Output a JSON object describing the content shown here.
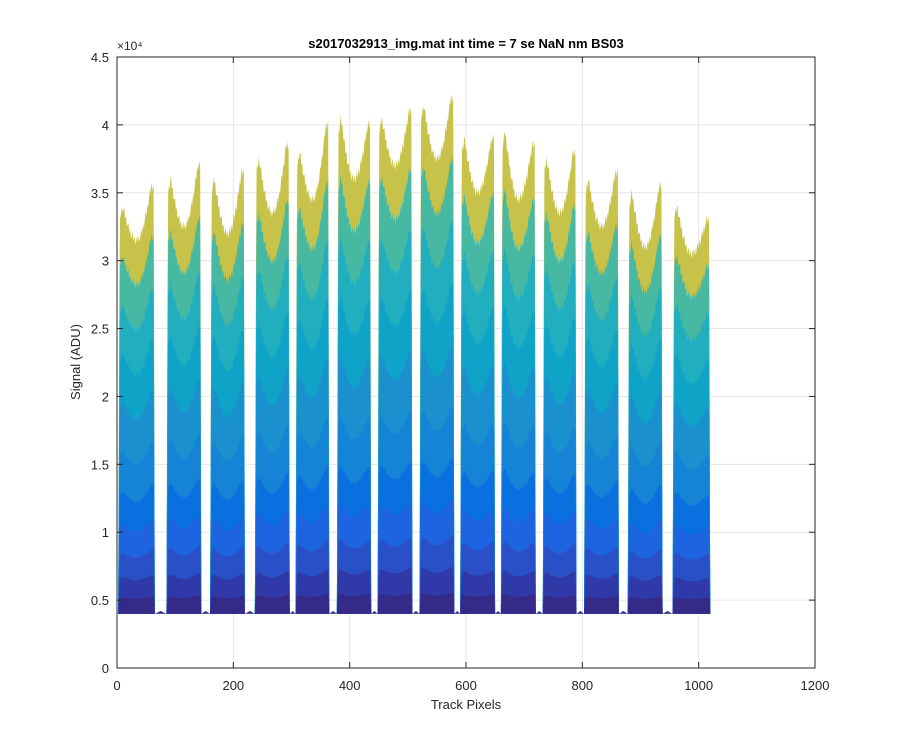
{
  "chart_data": {
    "type": "area",
    "title": "s2017032913_img.mat int time = 7 se  NaN nm BS03",
    "xlabel": "Track Pixels",
    "ylabel": "Signal (ADU)",
    "xlim": [
      0,
      1200
    ],
    "ylim": [
      0,
      45000
    ],
    "x_ticks": [
      0,
      200,
      400,
      600,
      800,
      1000,
      1200
    ],
    "x_tick_labels": [
      "0",
      "200",
      "400",
      "600",
      "800",
      "1000",
      "1200"
    ],
    "y_ticks": [
      0,
      5000,
      10000,
      15000,
      20000,
      25000,
      30000,
      35000,
      40000,
      45000
    ],
    "y_tick_labels": [
      "0",
      "0.5",
      "1",
      "1.5",
      "2",
      "2.5",
      "3",
      "3.5",
      "4",
      "4.5"
    ],
    "y_exponent_label": "×10⁴",
    "grid": true,
    "baseline": 4000,
    "gap_minima": 4200,
    "channels": [
      {
        "x_start": 2,
        "x_end": 65,
        "left_peak": 34000,
        "mid_value": 31500,
        "right_peak": 35500
      },
      {
        "x_start": 85,
        "x_end": 145,
        "left_peak": 36000,
        "mid_value": 32500,
        "right_peak": 37000
      },
      {
        "x_start": 160,
        "x_end": 220,
        "left_peak": 36000,
        "mid_value": 32000,
        "right_peak": 36500
      },
      {
        "x_start": 237,
        "x_end": 297,
        "left_peak": 37500,
        "mid_value": 33500,
        "right_peak": 38500
      },
      {
        "x_start": 307,
        "x_end": 365,
        "left_peak": 38000,
        "mid_value": 34500,
        "right_peak": 40000
      },
      {
        "x_start": 378,
        "x_end": 437,
        "left_peak": 40500,
        "mid_value": 36000,
        "right_peak": 40000
      },
      {
        "x_start": 448,
        "x_end": 508,
        "left_peak": 40500,
        "mid_value": 37000,
        "right_peak": 41000
      },
      {
        "x_start": 520,
        "x_end": 580,
        "left_peak": 41500,
        "mid_value": 37500,
        "right_peak": 42000
      },
      {
        "x_start": 590,
        "x_end": 650,
        "left_peak": 39000,
        "mid_value": 35000,
        "right_peak": 39000
      },
      {
        "x_start": 660,
        "x_end": 720,
        "left_peak": 39500,
        "mid_value": 34500,
        "right_peak": 38500
      },
      {
        "x_start": 732,
        "x_end": 790,
        "left_peak": 37500,
        "mid_value": 33500,
        "right_peak": 38000
      },
      {
        "x_start": 803,
        "x_end": 863,
        "left_peak": 36000,
        "mid_value": 32500,
        "right_peak": 36500
      },
      {
        "x_start": 878,
        "x_end": 938,
        "left_peak": 35000,
        "mid_value": 31000,
        "right_peak": 35500
      },
      {
        "x_start": 955,
        "x_end": 1020,
        "left_peak": 34000,
        "mid_value": 30500,
        "right_peak": 33000
      }
    ],
    "layer_levels": [
      0.04,
      0.09,
      0.15,
      0.22,
      0.3,
      0.4,
      0.52,
      0.64,
      0.76,
      0.88,
      1.0
    ],
    "layer_colors": [
      "#352a87",
      "#2f3aa8",
      "#2a50c8",
      "#1e63e0",
      "#0a70e0",
      "#1583d6",
      "#1a90cf",
      "#0fa3c8",
      "#21afc0",
      "#47b9a3",
      "#c7c24a"
    ],
    "colormap": "parula"
  }
}
